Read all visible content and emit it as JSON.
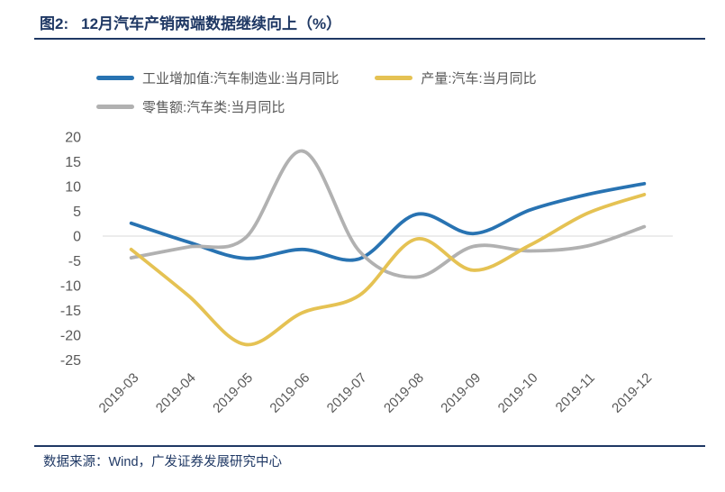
{
  "title": {
    "prefix": "图2:",
    "text": "12月汽车产销两端数据继续向上（%）"
  },
  "footer": {
    "label": "数据来源：",
    "text": "Wind，广发证券发展研究中心"
  },
  "colors": {
    "accent_navy": "#1F3864",
    "series_industrial_blue": "#2873B2",
    "series_production_yellow": "#E5C253",
    "series_retail_gray": "#B1B1B1",
    "gridline": "#D9D9D9",
    "axis_text": "#595959"
  },
  "chart_data": {
    "type": "line",
    "title": "12月汽车产销两端数据继续向上（%）",
    "categories": [
      "2019-03",
      "2019-04",
      "2019-05",
      "2019-06",
      "2019-07",
      "2019-08",
      "2019-09",
      "2019-10",
      "2019-11",
      "2019-12"
    ],
    "series": [
      {
        "name": "工业增加值:汽车制造业:当月同比",
        "color": "#2873B2",
        "values": [
          2.6,
          -1.2,
          -4.5,
          -2.7,
          -4.6,
          4.4,
          0.5,
          5.3,
          8.4,
          10.6
        ]
      },
      {
        "name": "产量:汽车:当月同比",
        "color": "#E5C253",
        "values": [
          -2.7,
          -12.0,
          -21.9,
          -15.5,
          -12.0,
          -0.6,
          -6.9,
          -1.8,
          4.6,
          8.4
        ]
      },
      {
        "name": "零售额:汽车类:当月同比",
        "color": "#B1B1B1",
        "values": [
          -4.4,
          -2.2,
          -0.4,
          17.2,
          -3.0,
          -8.3,
          -2.1,
          -3.0,
          -2.0,
          1.9
        ]
      }
    ],
    "ylim": [
      -25,
      20
    ],
    "yticks": [
      20,
      15,
      10,
      5,
      0,
      -5,
      -10,
      -15,
      -20,
      -25
    ],
    "smooth": true,
    "grid": "zero-line-only",
    "legend_position": "top-left",
    "x_label_rotation_deg": 45
  }
}
